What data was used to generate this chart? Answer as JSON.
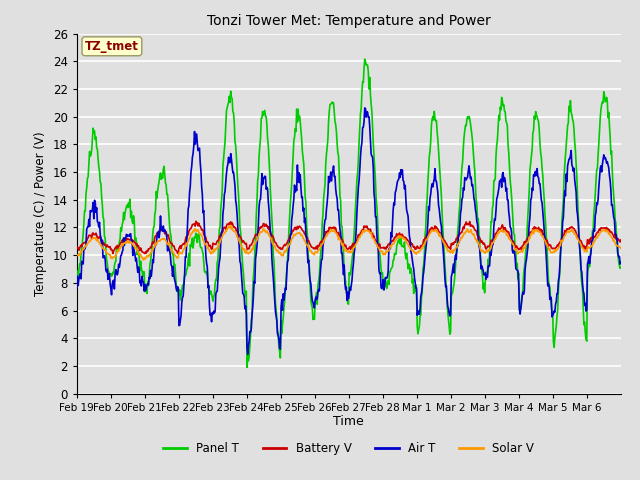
{
  "title": "Tonzi Tower Met: Temperature and Power",
  "xlabel": "Time",
  "ylabel": "Temperature (C) / Power (V)",
  "ylim": [
    0,
    26
  ],
  "yticks": [
    0,
    2,
    4,
    6,
    8,
    10,
    12,
    14,
    16,
    18,
    20,
    22,
    24,
    26
  ],
  "xtick_labels": [
    "Feb 19",
    "Feb 20",
    "Feb 21",
    "Feb 22",
    "Feb 23",
    "Feb 24",
    "Feb 25",
    "Feb 26",
    "Feb 27",
    "Feb 28",
    "Mar 1",
    "Mar 2",
    "Mar 3",
    "Mar 4",
    "Mar 5",
    "Mar 6"
  ],
  "annotation_text": "TZ_tmet",
  "annotation_color": "#8B0000",
  "annotation_bg": "#FFFFCC",
  "legend_labels": [
    "Panel T",
    "Battery V",
    "Air T",
    "Solar V"
  ],
  "legend_colors": [
    "#00CC00",
    "#CC0000",
    "#0000CC",
    "#FF9900"
  ],
  "bg_color": "#E0E0E0",
  "grid_color": "#FFFFFF",
  "line_width": 1.2,
  "panel_peaks": [
    18.5,
    13.5,
    16.0,
    11.5,
    21.5,
    20.5,
    20.0,
    21.0,
    24.0,
    11.0,
    20.0,
    20.0,
    21.0,
    20.0,
    20.5,
    21.5
  ],
  "panel_troughs": [
    8.5,
    8.5,
    7.5,
    7.0,
    7.0,
    2.5,
    5.0,
    6.5,
    8.5,
    7.5,
    4.5,
    7.5,
    8.5,
    6.0,
    3.8,
    9.0
  ],
  "air_peaks": [
    13.5,
    11.5,
    12.0,
    18.5,
    17.0,
    15.5,
    15.5,
    16.0,
    20.5,
    16.0,
    15.5,
    16.0,
    15.5,
    16.0,
    17.0,
    17.0
  ],
  "air_troughs": [
    8.0,
    7.7,
    7.5,
    5.2,
    6.0,
    3.2,
    6.2,
    6.8,
    7.5,
    7.8,
    5.5,
    8.5,
    8.5,
    6.0,
    5.8,
    9.5
  ],
  "batt_peaks": [
    11.5,
    11.2,
    11.8,
    12.3,
    12.3,
    12.2,
    12.0,
    12.0,
    12.0,
    11.5,
    12.0,
    12.3,
    12.0,
    12.0,
    12.0,
    12.0
  ],
  "batt_troughs": [
    10.5,
    10.3,
    10.2,
    10.5,
    10.8,
    10.5,
    10.5,
    10.5,
    10.5,
    10.5,
    10.5,
    10.8,
    10.5,
    10.5,
    10.5,
    11.0
  ],
  "solar_peaks": [
    11.2,
    11.0,
    11.2,
    11.8,
    12.0,
    11.8,
    11.6,
    11.8,
    11.8,
    11.3,
    11.8,
    11.8,
    11.8,
    11.8,
    11.8,
    11.8
  ],
  "solar_troughs": [
    10.0,
    9.8,
    9.8,
    10.1,
    10.3,
    10.1,
    10.0,
    10.2,
    10.2,
    10.1,
    10.2,
    10.2,
    10.2,
    10.2,
    10.2,
    10.5
  ]
}
